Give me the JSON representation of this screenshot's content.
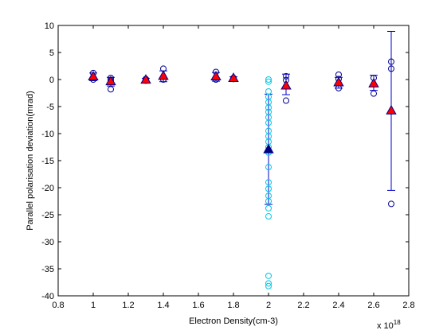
{
  "chart_data": {
    "type": "scatter",
    "title": "",
    "xlabel": "Electron Density(cm-3)",
    "ylabel": "Parallel polarisation deviation(mrad)",
    "x_exponent_label": "x 10",
    "x_exponent_power": "18",
    "xlim": [
      0.8,
      2.8
    ],
    "ylim": [
      -40,
      10
    ],
    "x_ticks": [
      0.8,
      1,
      1.2,
      1.4,
      1.6,
      1.8,
      2,
      2.2,
      2.4,
      2.6,
      2.8
    ],
    "x_tick_labels": [
      "0.8",
      "1",
      "1.2",
      "1.4",
      "1.6",
      "1.8",
      "2",
      "2.2",
      "2.4",
      "2.6",
      "2.8"
    ],
    "y_ticks": [
      10,
      5,
      0,
      -5,
      -10,
      -15,
      -20,
      -25,
      -30,
      -35,
      -40
    ],
    "y_tick_labels": [
      "10",
      "5",
      "0",
      "-5",
      "-10",
      "-15",
      "-20",
      "-25",
      "-30",
      "-35",
      "-40"
    ],
    "grid": false,
    "colors": {
      "measurement": "#00008b",
      "cyan_measurement": "#00c8e6",
      "mean": "#ff0000",
      "highlight_mean": "#000080",
      "errorbar": "#0000cd"
    },
    "series": [
      {
        "marker": "open-circle",
        "color": "#00008b",
        "points": [
          [
            1.0,
            1.2
          ],
          [
            1.0,
            0.3
          ],
          [
            1.0,
            0.0
          ],
          [
            1.1,
            0.3
          ],
          [
            1.1,
            -0.1
          ],
          [
            1.1,
            -1.8
          ],
          [
            1.3,
            0.1
          ],
          [
            1.3,
            -0.2
          ],
          [
            1.4,
            2.0
          ],
          [
            1.4,
            0.0
          ],
          [
            1.7,
            1.4
          ],
          [
            1.7,
            0.0
          ],
          [
            1.8,
            0.3
          ],
          [
            1.8,
            0.1
          ],
          [
            2.1,
            0.6
          ],
          [
            2.1,
            -0.1
          ],
          [
            2.1,
            -3.9
          ],
          [
            2.4,
            0.9
          ],
          [
            2.4,
            0.1
          ],
          [
            2.4,
            -1.6
          ],
          [
            2.6,
            0.3
          ],
          [
            2.6,
            -2.6
          ],
          [
            2.7,
            3.3
          ],
          [
            2.7,
            2.0
          ],
          [
            2.7,
            -23.0
          ]
        ]
      },
      {
        "marker": "open-circle",
        "color": "#00c8e6",
        "points": [
          [
            2.0,
            0.0
          ],
          [
            2.0,
            -0.4
          ],
          [
            2.0,
            -2.2
          ],
          [
            2.0,
            -3.2
          ],
          [
            2.0,
            -4.2
          ],
          [
            2.0,
            -5.2
          ],
          [
            2.0,
            -6.0
          ],
          [
            2.0,
            -7.0
          ],
          [
            2.0,
            -8.0
          ],
          [
            2.0,
            -9.5
          ],
          [
            2.0,
            -10.5
          ],
          [
            2.0,
            -11.5
          ],
          [
            2.0,
            -12.5
          ],
          [
            2.0,
            -13.5
          ],
          [
            2.0,
            -16.2
          ],
          [
            2.0,
            -19.0
          ],
          [
            2.0,
            -20.2
          ],
          [
            2.0,
            -21.5
          ],
          [
            2.0,
            -22.5
          ],
          [
            2.0,
            -23.8
          ],
          [
            2.0,
            -25.3
          ],
          [
            2.0,
            -36.3
          ],
          [
            2.0,
            -37.7
          ],
          [
            2.0,
            -38.2
          ]
        ]
      },
      {
        "marker": "filled-triangle",
        "color": "#ff0000",
        "points": [
          [
            1.0,
            0.5
          ],
          [
            1.1,
            -0.4
          ],
          [
            1.3,
            -0.1
          ],
          [
            1.4,
            0.6
          ],
          [
            1.7,
            0.5
          ],
          [
            1.8,
            0.2
          ],
          [
            2.1,
            -1.2
          ],
          [
            2.4,
            -0.6
          ],
          [
            2.6,
            -0.8
          ],
          [
            2.7,
            -5.8
          ]
        ]
      },
      {
        "marker": "filled-triangle",
        "color": "#000080",
        "points": [
          [
            2.0,
            -13.0
          ]
        ]
      }
    ],
    "error_bars": [
      {
        "x": 1.0,
        "low": -0.2,
        "high": 1.2
      },
      {
        "x": 1.1,
        "low": -1.2,
        "high": 0.4
      },
      {
        "x": 1.3,
        "low": -0.4,
        "high": 0.2
      },
      {
        "x": 1.4,
        "low": -0.4,
        "high": 1.6
      },
      {
        "x": 1.7,
        "low": -0.3,
        "high": 1.3
      },
      {
        "x": 1.8,
        "low": -0.1,
        "high": 0.5
      },
      {
        "x": 2.0,
        "low": -23.1,
        "high": -2.7
      },
      {
        "x": 2.1,
        "low": -2.8,
        "high": 1.0
      },
      {
        "x": 2.4,
        "low": -1.6,
        "high": 0.4
      },
      {
        "x": 2.6,
        "low": -2.0,
        "high": 0.8
      },
      {
        "x": 2.7,
        "low": -20.5,
        "high": 8.9
      }
    ]
  }
}
